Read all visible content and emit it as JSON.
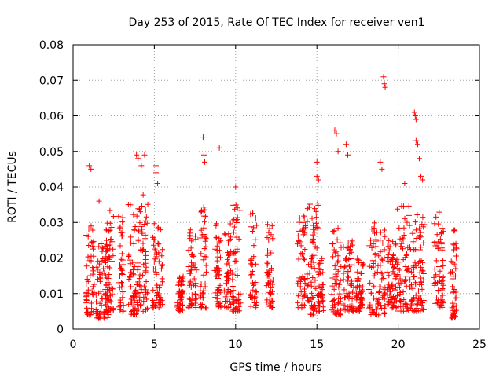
{
  "chart_data": {
    "type": "scatter",
    "title": "Day 253 of 2015, Rate Of TEC Index for receiver ven1",
    "xlabel": "GPS time / hours",
    "ylabel": "ROTI / TECUs",
    "xlim": [
      0,
      25
    ],
    "ylim": [
      0,
      0.08
    ],
    "xticks": [
      0,
      5,
      10,
      15,
      20,
      25
    ],
    "yticks": [
      0,
      0.01,
      0.02,
      0.03,
      0.04,
      0.05,
      0.06,
      0.07,
      0.08
    ],
    "grid": true,
    "marker": "plus",
    "color": "#ff0000",
    "clusters": [
      {
        "x": [
          0.8,
          1.3
        ],
        "y": [
          0.004,
          0.03
        ]
      },
      {
        "x": [
          1.4,
          2.2
        ],
        "y": [
          0.003,
          0.025
        ]
      },
      {
        "x": [
          2.0,
          2.5
        ],
        "y": [
          0.005,
          0.034
        ]
      },
      {
        "x": [
          2.8,
          3.1
        ],
        "y": [
          0.005,
          0.032
        ]
      },
      {
        "x": [
          3.4,
          4.0
        ],
        "y": [
          0.004,
          0.036
        ]
      },
      {
        "x": [
          4.0,
          4.6
        ],
        "y": [
          0.005,
          0.038
        ]
      },
      {
        "x": [
          4.9,
          5.5
        ],
        "y": [
          0.006,
          0.03
        ]
      },
      {
        "x": [
          6.4,
          6.8
        ],
        "y": [
          0.005,
          0.015
        ]
      },
      {
        "x": [
          7.1,
          7.6
        ],
        "y": [
          0.006,
          0.028
        ]
      },
      {
        "x": [
          7.8,
          8.2
        ],
        "y": [
          0.006,
          0.035
        ]
      },
      {
        "x": [
          8.7,
          9.1
        ],
        "y": [
          0.006,
          0.03
        ]
      },
      {
        "x": [
          9.3,
          9.7
        ],
        "y": [
          0.006,
          0.03
        ]
      },
      {
        "x": [
          9.8,
          10.3
        ],
        "y": [
          0.005,
          0.035
        ]
      },
      {
        "x": [
          10.9,
          11.3
        ],
        "y": [
          0.006,
          0.034
        ]
      },
      {
        "x": [
          11.9,
          12.3
        ],
        "y": [
          0.006,
          0.03
        ]
      },
      {
        "x": [
          13.8,
          14.3
        ],
        "y": [
          0.006,
          0.032
        ]
      },
      {
        "x": [
          14.4,
          15.1
        ],
        "y": [
          0.004,
          0.036
        ]
      },
      {
        "x": [
          15.1,
          15.4
        ],
        "y": [
          0.005,
          0.02
        ]
      },
      {
        "x": [
          15.9,
          16.5
        ],
        "y": [
          0.004,
          0.03
        ]
      },
      {
        "x": [
          16.6,
          17.3
        ],
        "y": [
          0.005,
          0.025
        ]
      },
      {
        "x": [
          17.4,
          17.9
        ],
        "y": [
          0.005,
          0.02
        ]
      },
      {
        "x": [
          18.2,
          19.2
        ],
        "y": [
          0.004,
          0.03
        ]
      },
      {
        "x": [
          19.3,
          19.9
        ],
        "y": [
          0.006,
          0.025
        ]
      },
      {
        "x": [
          19.9,
          21.0
        ],
        "y": [
          0.005,
          0.035
        ]
      },
      {
        "x": [
          21.0,
          21.6
        ],
        "y": [
          0.005,
          0.033
        ]
      },
      {
        "x": [
          22.2,
          22.8
        ],
        "y": [
          0.006,
          0.033
        ]
      },
      {
        "x": [
          23.2,
          23.6
        ],
        "y": [
          0.003,
          0.028
        ]
      }
    ],
    "outliers": [
      {
        "x": 1.0,
        "y": 0.046
      },
      {
        "x": 1.1,
        "y": 0.045
      },
      {
        "x": 1.6,
        "y": 0.036
      },
      {
        "x": 3.9,
        "y": 0.049
      },
      {
        "x": 4.0,
        "y": 0.048
      },
      {
        "x": 4.2,
        "y": 0.046
      },
      {
        "x": 4.4,
        "y": 0.049
      },
      {
        "x": 5.1,
        "y": 0.046
      },
      {
        "x": 5.1,
        "y": 0.044
      },
      {
        "x": 5.2,
        "y": 0.041
      },
      {
        "x": 8.0,
        "y": 0.054
      },
      {
        "x": 8.05,
        "y": 0.049
      },
      {
        "x": 8.1,
        "y": 0.047
      },
      {
        "x": 9.0,
        "y": 0.051
      },
      {
        "x": 10.0,
        "y": 0.04
      },
      {
        "x": 15.0,
        "y": 0.047
      },
      {
        "x": 15.0,
        "y": 0.043
      },
      {
        "x": 15.1,
        "y": 0.042
      },
      {
        "x": 16.1,
        "y": 0.056
      },
      {
        "x": 16.2,
        "y": 0.055
      },
      {
        "x": 16.3,
        "y": 0.05
      },
      {
        "x": 16.8,
        "y": 0.052
      },
      {
        "x": 16.9,
        "y": 0.049
      },
      {
        "x": 18.9,
        "y": 0.047
      },
      {
        "x": 19.0,
        "y": 0.045
      },
      {
        "x": 19.1,
        "y": 0.071
      },
      {
        "x": 19.15,
        "y": 0.069
      },
      {
        "x": 19.2,
        "y": 0.068
      },
      {
        "x": 20.4,
        "y": 0.041
      },
      {
        "x": 21.0,
        "y": 0.061
      },
      {
        "x": 21.05,
        "y": 0.06
      },
      {
        "x": 21.1,
        "y": 0.059
      },
      {
        "x": 21.1,
        "y": 0.053
      },
      {
        "x": 21.2,
        "y": 0.052
      },
      {
        "x": 21.3,
        "y": 0.048
      },
      {
        "x": 21.4,
        "y": 0.043
      },
      {
        "x": 21.5,
        "y": 0.042
      }
    ]
  }
}
